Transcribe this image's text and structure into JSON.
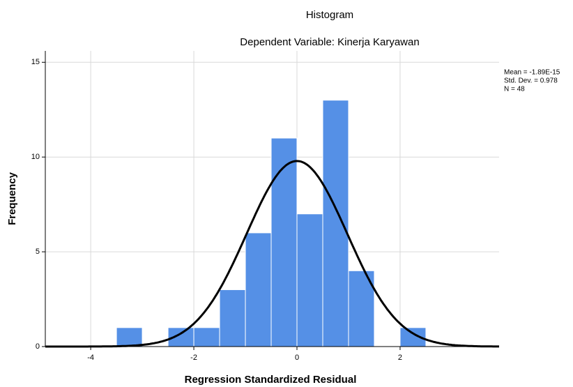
{
  "chart_data": {
    "type": "histogram",
    "title": "Histogram",
    "subtitle": "Dependent Variable: Kinerja Karyawan",
    "x_label": "Regression Standardized Residual",
    "y_label": "Frequency",
    "bins": [
      -3.5,
      -3,
      -2.5,
      -2,
      -1.5,
      -1,
      -0.5,
      0,
      0.5,
      1,
      1.5,
      2,
      2.5
    ],
    "values": [
      1,
      0,
      1,
      1,
      3,
      6,
      11,
      7,
      13,
      4,
      0,
      1
    ],
    "color": "#5590e6",
    "xlim": [
      -4.88,
      3.92
    ],
    "ylim": [
      0,
      15.6
    ],
    "xticks": [
      -4,
      -2,
      0,
      2
    ],
    "yticks": [
      0,
      5,
      10,
      15
    ],
    "grid": true,
    "normal_curve": true,
    "stats": [
      {
        "value": -1.89e-15,
        "label": "Mean = -1.89E-15"
      },
      {
        "value": 0.978,
        "label": "Std. Dev. = 0.978"
      },
      {
        "value": 48,
        "label": "N = 48"
      }
    ]
  }
}
